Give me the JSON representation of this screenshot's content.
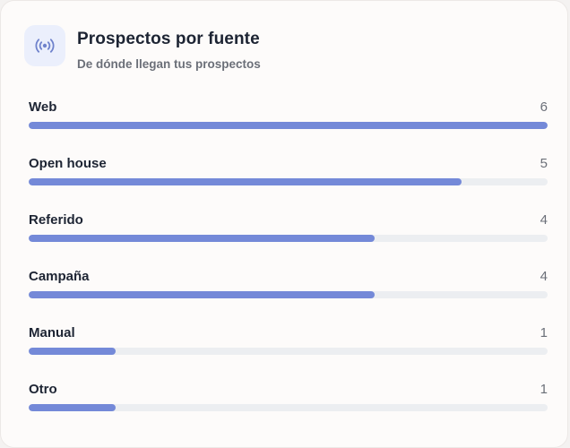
{
  "card": {
    "title": "Prospectos por fuente",
    "subtitle": "De dónde llegan tus prospectos",
    "icon": "broadcast-icon"
  },
  "colors": {
    "bar_fill": "#7489d8",
    "track": "#eceef1",
    "icon_bg": "#ebeffc",
    "icon_fg": "#6f82cc"
  },
  "sources": [
    {
      "label": "Web",
      "count": "6",
      "value": 6
    },
    {
      "label": "Open house",
      "count": "5",
      "value": 5
    },
    {
      "label": "Referido",
      "count": "4",
      "value": 4
    },
    {
      "label": "Campaña",
      "count": "4",
      "value": 4
    },
    {
      "label": "Manual",
      "count": "1",
      "value": 1
    },
    {
      "label": "Otro",
      "count": "1",
      "value": 1
    }
  ]
}
